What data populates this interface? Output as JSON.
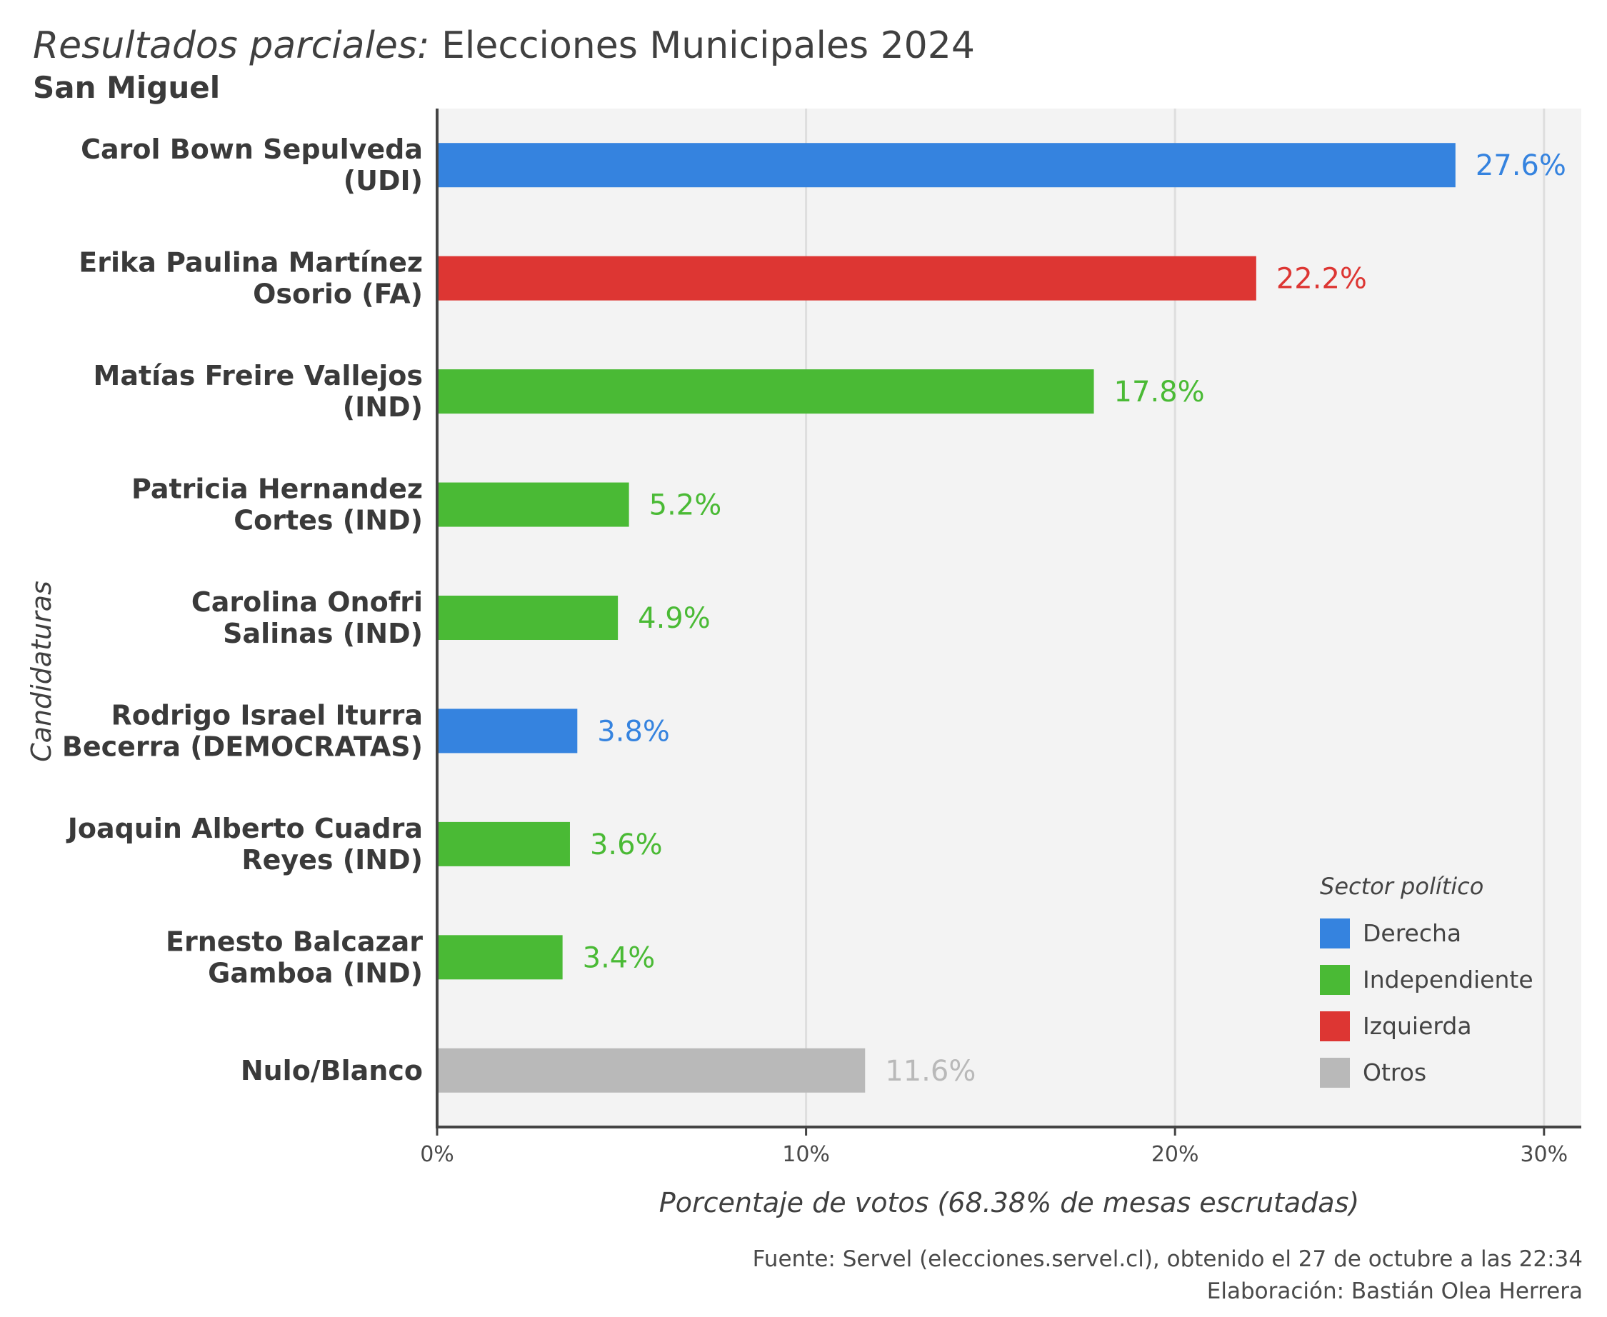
{
  "title": {
    "italic": "Resultados parciales:",
    "main": "Elecciones Municipales 2024"
  },
  "subtitle": "San Miguel",
  "caption": {
    "source": "Fuente: Servel (elecciones.servel.cl), obtenido el 27 de octubre a las 22:34",
    "author": "Elaboración: Bastián Olea Herrera"
  },
  "colors": {
    "Derecha": "#3583df",
    "Independiente": "#4aba35",
    "Izquierda": "#dd3633",
    "Otros": "#b9b9b9"
  },
  "legend": {
    "title": "Sector político",
    "items": [
      "Derecha",
      "Independiente",
      "Izquierda",
      "Otros"
    ]
  },
  "chart_data": {
    "type": "bar",
    "orientation": "horizontal",
    "xlabel": "Porcentaje de votos (68.38% de mesas escrutadas)",
    "ylabel": "Candidaturas",
    "xlim": [
      0,
      31
    ],
    "xticks": [
      "0%",
      "10%",
      "20%",
      "30%"
    ],
    "xtick_values": [
      0,
      10,
      20,
      30
    ],
    "grid": true,
    "legend_position": "bottom-right",
    "categories": [
      [
        "Carol Bown Sepulveda",
        "(UDI)"
      ],
      [
        "Erika Paulina Martínez",
        "Osorio (FA)"
      ],
      [
        "Matías Freire Vallejos",
        "(IND)"
      ],
      [
        "Patricia Hernandez",
        "Cortes (IND)"
      ],
      [
        "Carolina Onofri",
        "Salinas (IND)"
      ],
      [
        "Rodrigo Israel Iturra",
        "Becerra (DEMOCRATAS)"
      ],
      [
        "Joaquin Alberto Cuadra",
        "Reyes (IND)"
      ],
      [
        "Ernesto Balcazar",
        "Gamboa (IND)"
      ],
      [
        "Nulo/Blanco"
      ]
    ],
    "values": [
      27.6,
      22.2,
      17.8,
      5.2,
      4.9,
      3.8,
      3.6,
      3.4,
      11.6
    ],
    "labels": [
      "27.6%",
      "22.2%",
      "17.8%",
      "5.2%",
      "4.9%",
      "3.8%",
      "3.6%",
      "3.4%",
      "11.6%"
    ],
    "sector": [
      "Derecha",
      "Izquierda",
      "Independiente",
      "Independiente",
      "Independiente",
      "Derecha",
      "Independiente",
      "Independiente",
      "Otros"
    ]
  }
}
